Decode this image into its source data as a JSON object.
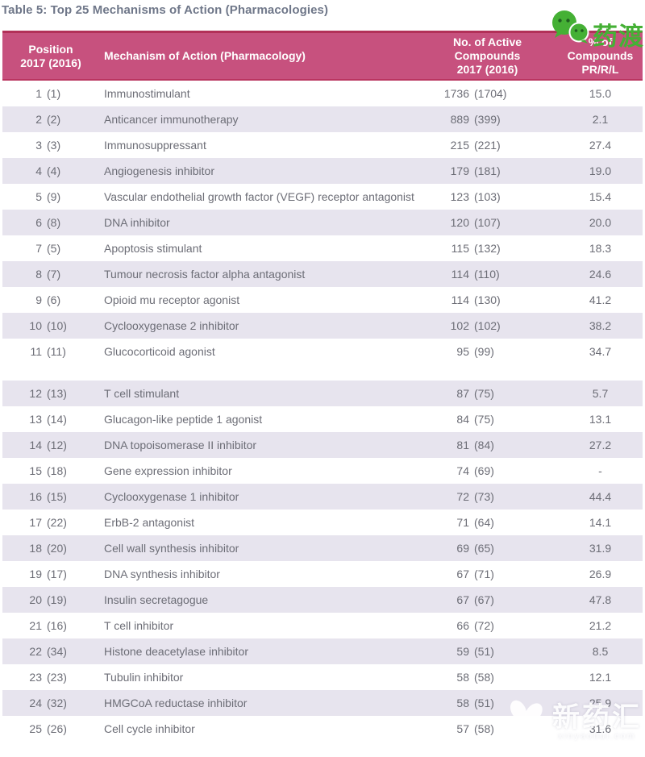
{
  "title": "Table 5: Top 25 Mechanisms of Action (Pharmacologies)",
  "branding": {
    "top_logo_text": "药渡",
    "watermark_text": "新药汇",
    "watermark_url": "xinyaohui.com"
  },
  "colors": {
    "header_bg": "#C7517E",
    "header_border": "#B23058",
    "row_alt_bg": "#E7E4EE",
    "row_text": "#6C6D76",
    "title_text": "#6F7789",
    "logo_green": "#45B035"
  },
  "table": {
    "header": {
      "position": "Position\n2017 (2016)",
      "mechanism": "Mechanism of Action (Pharmacology)",
      "compounds": "No. of Active\nCompounds\n2017 (2016)",
      "percent": "% of\nCompounds\nPR/R/L"
    },
    "rows": [
      {
        "position_2017": 1,
        "position_2016": 1,
        "mechanism": "Immunostimulant",
        "compounds_2017": 1736,
        "compounds_2016": 1704,
        "pct_pr_r_l": "15.0"
      },
      {
        "position_2017": 2,
        "position_2016": 2,
        "mechanism": "Anticancer immunotherapy",
        "compounds_2017": 889,
        "compounds_2016": 399,
        "pct_pr_r_l": "2.1"
      },
      {
        "position_2017": 3,
        "position_2016": 3,
        "mechanism": "Immunosuppressant",
        "compounds_2017": 215,
        "compounds_2016": 221,
        "pct_pr_r_l": "27.4"
      },
      {
        "position_2017": 4,
        "position_2016": 4,
        "mechanism": "Angiogenesis inhibitor",
        "compounds_2017": 179,
        "compounds_2016": 181,
        "pct_pr_r_l": "19.0"
      },
      {
        "position_2017": 5,
        "position_2016": 9,
        "mechanism": "Vascular endothelial growth factor (VEGF) receptor antagonist",
        "compounds_2017": 123,
        "compounds_2016": 103,
        "pct_pr_r_l": "15.4"
      },
      {
        "position_2017": 6,
        "position_2016": 8,
        "mechanism": "DNA inhibitor",
        "compounds_2017": 120,
        "compounds_2016": 107,
        "pct_pr_r_l": "20.0"
      },
      {
        "position_2017": 7,
        "position_2016": 5,
        "mechanism": "Apoptosis stimulant",
        "compounds_2017": 115,
        "compounds_2016": 132,
        "pct_pr_r_l": "18.3"
      },
      {
        "position_2017": 8,
        "position_2016": 7,
        "mechanism": "Tumour necrosis factor alpha antagonist",
        "compounds_2017": 114,
        "compounds_2016": 110,
        "pct_pr_r_l": "24.6"
      },
      {
        "position_2017": 9,
        "position_2016": 6,
        "mechanism": "Opioid mu receptor agonist",
        "compounds_2017": 114,
        "compounds_2016": 130,
        "pct_pr_r_l": "41.2"
      },
      {
        "position_2017": 10,
        "position_2016": 10,
        "mechanism": "Cyclooxygenase 2 inhibitor",
        "compounds_2017": 102,
        "compounds_2016": 102,
        "pct_pr_r_l": "38.2"
      },
      {
        "position_2017": 11,
        "position_2016": 11,
        "mechanism": "Glucocorticoid agonist",
        "compounds_2017": 95,
        "compounds_2016": 99,
        "pct_pr_r_l": "34.7"
      },
      {
        "position_2017": 12,
        "position_2016": 13,
        "mechanism": "T cell stimulant",
        "compounds_2017": 87,
        "compounds_2016": 75,
        "pct_pr_r_l": "5.7"
      },
      {
        "position_2017": 13,
        "position_2016": 14,
        "mechanism": "Glucagon-like peptide 1 agonist",
        "compounds_2017": 84,
        "compounds_2016": 75,
        "pct_pr_r_l": "13.1"
      },
      {
        "position_2017": 14,
        "position_2016": 12,
        "mechanism": "DNA topoisomerase II inhibitor",
        "compounds_2017": 81,
        "compounds_2016": 84,
        "pct_pr_r_l": "27.2"
      },
      {
        "position_2017": 15,
        "position_2016": 18,
        "mechanism": "Gene expression inhibitor",
        "compounds_2017": 74,
        "compounds_2016": 69,
        "pct_pr_r_l": "-"
      },
      {
        "position_2017": 16,
        "position_2016": 15,
        "mechanism": "Cyclooxygenase 1 inhibitor",
        "compounds_2017": 72,
        "compounds_2016": 73,
        "pct_pr_r_l": "44.4"
      },
      {
        "position_2017": 17,
        "position_2016": 22,
        "mechanism": "ErbB-2 antagonist",
        "compounds_2017": 71,
        "compounds_2016": 64,
        "pct_pr_r_l": "14.1"
      },
      {
        "position_2017": 18,
        "position_2016": 20,
        "mechanism": "Cell wall synthesis inhibitor",
        "compounds_2017": 69,
        "compounds_2016": 65,
        "pct_pr_r_l": "31.9"
      },
      {
        "position_2017": 19,
        "position_2016": 17,
        "mechanism": "DNA synthesis inhibitor",
        "compounds_2017": 67,
        "compounds_2016": 71,
        "pct_pr_r_l": "26.9"
      },
      {
        "position_2017": 20,
        "position_2016": 19,
        "mechanism": "Insulin secretagogue",
        "compounds_2017": 67,
        "compounds_2016": 67,
        "pct_pr_r_l": "47.8"
      },
      {
        "position_2017": 21,
        "position_2016": 16,
        "mechanism": "T cell inhibitor",
        "compounds_2017": 66,
        "compounds_2016": 72,
        "pct_pr_r_l": "21.2"
      },
      {
        "position_2017": 22,
        "position_2016": 34,
        "mechanism": "Histone deacetylase inhibitor",
        "compounds_2017": 59,
        "compounds_2016": 51,
        "pct_pr_r_l": "8.5"
      },
      {
        "position_2017": 23,
        "position_2016": 23,
        "mechanism": "Tubulin inhibitor",
        "compounds_2017": 58,
        "compounds_2016": 58,
        "pct_pr_r_l": "12.1"
      },
      {
        "position_2017": 24,
        "position_2016": 32,
        "mechanism": "HMGCoA reductase inhibitor",
        "compounds_2017": 58,
        "compounds_2016": 51,
        "pct_pr_r_l": "25.9"
      },
      {
        "position_2017": 25,
        "position_2016": 26,
        "mechanism": "Cell cycle inhibitor",
        "compounds_2017": 57,
        "compounds_2016": 58,
        "pct_pr_r_l": "31.6"
      }
    ]
  }
}
